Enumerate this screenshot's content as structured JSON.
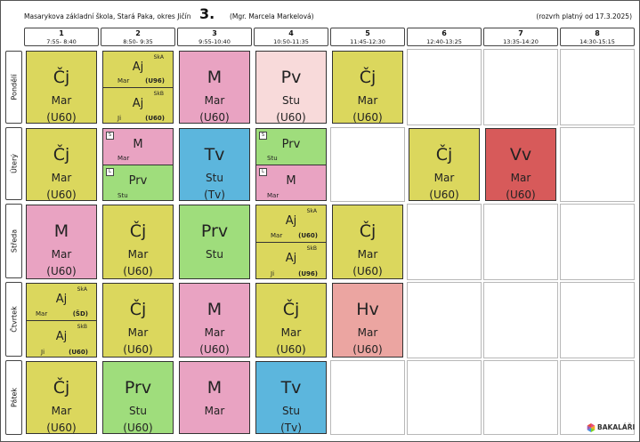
{
  "header": {
    "school": "Masarykova základní škola, Stará Paka, okres Jičín",
    "class": "3.",
    "teacher": "(Mgr. Marcela Markelová)",
    "valid": "(rozvrh platný od 17.3.2025)"
  },
  "periods": [
    {
      "n": "1",
      "t": "7:55- 8:40"
    },
    {
      "n": "2",
      "t": "8:50- 9:35"
    },
    {
      "n": "3",
      "t": "9:55-10:40"
    },
    {
      "n": "4",
      "t": "10:50-11:35"
    },
    {
      "n": "5",
      "t": "11:45-12:30"
    },
    {
      "n": "6",
      "t": "12:40-13:25"
    },
    {
      "n": "7",
      "t": "13:35-14:20"
    },
    {
      "n": "8",
      "t": "14:30-15:15"
    }
  ],
  "days": [
    "Pondělí",
    "Úterý",
    "Středa",
    "Čtvrtek",
    "Pátek"
  ],
  "lessons": {
    "mon_1": {
      "subj": "Čj",
      "tch": "Mar",
      "room": "(U60)"
    },
    "mon_2a": {
      "s": "Aj",
      "g": "SkA",
      "t": "Mar",
      "r": "(U96)"
    },
    "mon_2b": {
      "s": "Aj",
      "g": "SkB",
      "t": "Ji",
      "r": "(U60)"
    },
    "mon_3": {
      "subj": "M",
      "tch": "Mar",
      "room": "(U60)"
    },
    "mon_4": {
      "subj": "Pv",
      "tch": "Stu",
      "room": "(U60)"
    },
    "mon_5": {
      "subj": "Čj",
      "tch": "Mar",
      "room": "(U60)"
    },
    "tue_1": {
      "subj": "Čj",
      "tch": "Mar",
      "room": "(U60)"
    },
    "tue_2a": {
      "s": "M",
      "t": "Mar",
      "mk": "S"
    },
    "tue_2b": {
      "s": "Prv",
      "t": "Stu",
      "mk": "L"
    },
    "tue_3": {
      "subj": "Tv",
      "tch": "Stu",
      "room": "(Tv)"
    },
    "tue_4a": {
      "s": "Prv",
      "t": "Stu",
      "mk": "S"
    },
    "tue_4b": {
      "s": "M",
      "t": "Mar",
      "mk": "L"
    },
    "tue_6": {
      "subj": "Čj",
      "tch": "Mar",
      "room": "(U60)"
    },
    "tue_7": {
      "subj": "Vv",
      "tch": "Mar",
      "room": "(U60)"
    },
    "wed_1": {
      "subj": "M",
      "tch": "Mar",
      "room": "(U60)"
    },
    "wed_2": {
      "subj": "Čj",
      "tch": "Mar",
      "room": "(U60)"
    },
    "wed_3": {
      "subj": "Prv",
      "tch": "Stu",
      "room": ""
    },
    "wed_4a": {
      "s": "Aj",
      "g": "SkA",
      "t": "Mar",
      "r": "(U60)"
    },
    "wed_4b": {
      "s": "Aj",
      "g": "SkB",
      "t": "Ji",
      "r": "(U96)"
    },
    "wed_5": {
      "subj": "Čj",
      "tch": "Mar",
      "room": "(U60)"
    },
    "thu_1a": {
      "s": "Aj",
      "g": "SkA",
      "t": "Mar",
      "r": "(ŠD)"
    },
    "thu_1b": {
      "s": "Aj",
      "g": "SkB",
      "t": "Ji",
      "r": "(U60)"
    },
    "thu_2": {
      "subj": "Čj",
      "tch": "Mar",
      "room": "(U60)"
    },
    "thu_3": {
      "subj": "M",
      "tch": "Mar",
      "room": "(U60)"
    },
    "thu_4": {
      "subj": "Čj",
      "tch": "Mar",
      "room": "(U60)"
    },
    "thu_5": {
      "subj": "Hv",
      "tch": "Mar",
      "room": "(U60)"
    },
    "fri_1": {
      "subj": "Čj",
      "tch": "Mar",
      "room": "(U60)"
    },
    "fri_2": {
      "subj": "Prv",
      "tch": "Stu",
      "room": "(U60)"
    },
    "fri_3": {
      "subj": "M",
      "tch": "Mar",
      "room": ""
    },
    "fri_4": {
      "subj": "Tv",
      "tch": "Stu",
      "room": "(Tv)"
    }
  },
  "colors": {
    "cj": "#dbd75d",
    "aj": "#dbd75d",
    "m": "#e9a3c2",
    "pv": "#f8dada",
    "tv": "#5cb6dd",
    "prv": "#9fdd7c",
    "vv": "#d75a5a",
    "hv": "#eba5a1"
  },
  "logo": {
    "label": "BAKALÁŘI",
    "icon": "bakalari-logo-icon"
  }
}
